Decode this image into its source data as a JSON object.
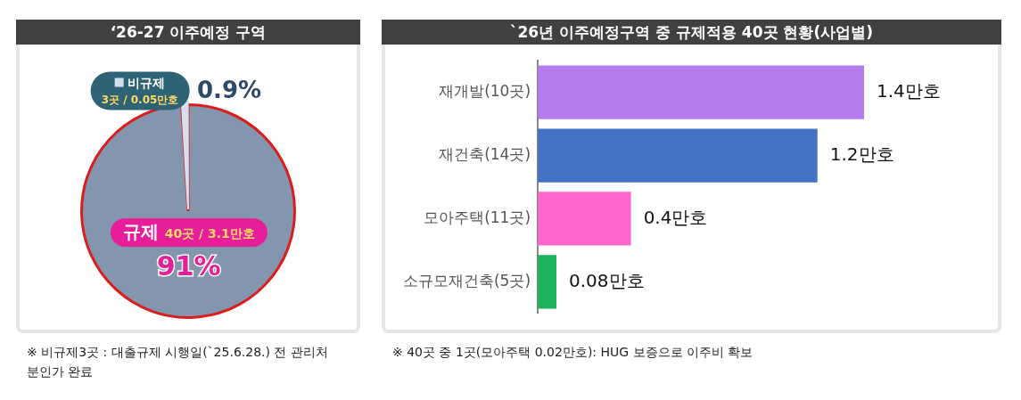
{
  "chart_data": [
    {
      "type": "pie",
      "title": "‘26-27 이주예정 구역",
      "categories": [
        "규제",
        "비규제"
      ],
      "values": [
        91,
        0.9
      ],
      "colors": [
        "#8496ae",
        "#d6dff0"
      ],
      "value_labels": [
        "91%",
        "0.9%"
      ],
      "annotations": [
        {
          "text": "40곳 / 3.1만호",
          "x": "규제"
        },
        {
          "text": "3곳 / 0.05만호",
          "x": "비규제"
        },
        "※ 비규제3곳 : 대출규제 시행일(`25.6.28.) 전 관리처분인가 완료"
      ]
    },
    {
      "type": "bar",
      "orientation": "horizontal",
      "title": "`26년 이주예정구역 중 규제적용 40곳 현황(사업별)",
      "categories": [
        "재개발(10곳)",
        "재건축(14곳)",
        "모아주택(11곳)",
        "소규모재건축(5곳)"
      ],
      "values": [
        1.4,
        1.2,
        0.4,
        0.08
      ],
      "colors": [
        "#b57bec",
        "#4472c4",
        "#ff66cc",
        "#1db35c"
      ],
      "value_labels": [
        "1.4만호",
        "1.2만호",
        "0.4만호",
        "0.08만호"
      ],
      "annotations": [
        "※ 40곳 중 1곳(모아주택 0.02만호): HUG 보증으로 이주비 확보"
      ]
    }
  ]
}
